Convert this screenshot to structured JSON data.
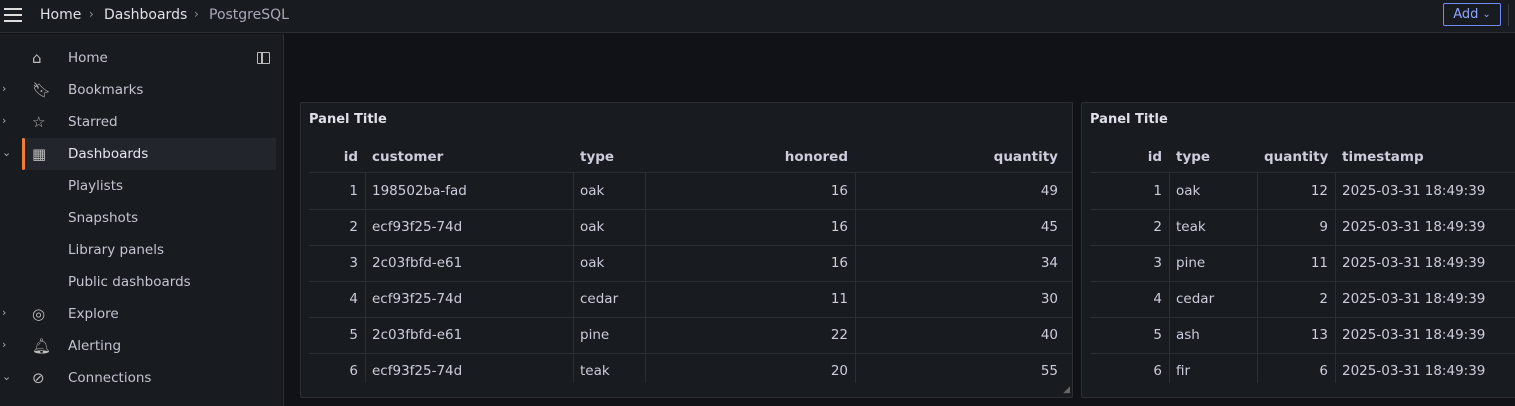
{
  "topbar": {
    "breadcrumbs": [
      "Home",
      "Dashboards",
      "PostgreSQL"
    ],
    "add_label": "Add"
  },
  "sidebar": {
    "items": [
      {
        "label": "Home",
        "icon": "home-icon",
        "chevron": ""
      },
      {
        "label": "Bookmarks",
        "icon": "bookmark-icon",
        "chevron": "›"
      },
      {
        "label": "Starred",
        "icon": "star-icon",
        "chevron": "›"
      },
      {
        "label": "Dashboards",
        "icon": "dashboards-icon",
        "chevron": "⌄",
        "active": true
      },
      {
        "label": "Playlists"
      },
      {
        "label": "Snapshots"
      },
      {
        "label": "Library panels"
      },
      {
        "label": "Public dashboards"
      },
      {
        "label": "Explore",
        "icon": "compass-icon",
        "chevron": "›"
      },
      {
        "label": "Alerting",
        "icon": "bell-icon",
        "chevron": "›"
      },
      {
        "label": "Connections",
        "icon": "connections-icon",
        "chevron": "⌄"
      }
    ]
  },
  "accent": "#f27d38",
  "panels": [
    {
      "title": "Panel Title",
      "columns": [
        "id",
        "customer",
        "type",
        "honored",
        "quantity"
      ],
      "rows": [
        [
          "1",
          "198502ba-fad",
          "oak",
          "16",
          "49"
        ],
        [
          "2",
          "ecf93f25-74d",
          "oak",
          "16",
          "45"
        ],
        [
          "3",
          "2c03fbfd-e61",
          "oak",
          "16",
          "34"
        ],
        [
          "4",
          "ecf93f25-74d",
          "cedar",
          "11",
          "30"
        ],
        [
          "5",
          "2c03fbfd-e61",
          "pine",
          "22",
          "40"
        ],
        [
          "6",
          "ecf93f25-74d",
          "teak",
          "20",
          "55"
        ]
      ]
    },
    {
      "title": "Panel Title",
      "columns": [
        "id",
        "type",
        "quantity",
        "timestamp"
      ],
      "rows": [
        [
          "1",
          "oak",
          "12",
          "2025-03-31 18:49:39"
        ],
        [
          "2",
          "teak",
          "9",
          "2025-03-31 18:49:39"
        ],
        [
          "3",
          "pine",
          "11",
          "2025-03-31 18:49:39"
        ],
        [
          "4",
          "cedar",
          "2",
          "2025-03-31 18:49:39"
        ],
        [
          "5",
          "ash",
          "13",
          "2025-03-31 18:49:39"
        ],
        [
          "6",
          "fir",
          "6",
          "2025-03-31 18:49:39"
        ]
      ]
    }
  ]
}
